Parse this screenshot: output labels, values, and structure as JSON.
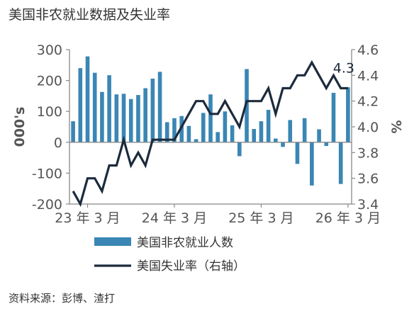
{
  "title": "美国非农就业数据及失业率",
  "source": "资料来源：彭博、渣打",
  "colors": {
    "bar": "#3a86b4",
    "line": "#1c2b3c",
    "axis": "#888888"
  },
  "chart_data": {
    "type": "bar",
    "title": "美国非农就业数据及失业率",
    "legend_placement": "bottom",
    "grid": false,
    "xlabel": "",
    "ylabel": "000's",
    "y2label": "%",
    "ylim": [
      -200,
      300
    ],
    "y2lim": [
      3.4,
      4.6
    ],
    "yticks": [
      -200,
      -100,
      0,
      100,
      200,
      300
    ],
    "y2ticks": [
      "3.4",
      "3.6",
      "3.8",
      "4.0",
      "4.2",
      "4.4",
      "4.6"
    ],
    "x_tick_labels": [
      {
        "index": 2,
        "label": "23 年 3 月"
      },
      {
        "index": 14,
        "label": "24 年 3 月"
      },
      {
        "index": 26,
        "label": "25 年 3 月"
      },
      {
        "index": 38,
        "label": "26 年 3 月"
      }
    ],
    "months": [
      "2023-01",
      "2023-02",
      "2023-03",
      "2023-04",
      "2023-05",
      "2023-06",
      "2023-07",
      "2023-08",
      "2023-09",
      "2023-10",
      "2023-11",
      "2023-12",
      "2024-01",
      "2024-02",
      "2024-03",
      "2024-04",
      "2024-05",
      "2024-06",
      "2024-07",
      "2024-08",
      "2024-09",
      "2024-10",
      "2024-11",
      "2024-12",
      "2025-01",
      "2025-02",
      "2025-03",
      "2025-04",
      "2025-05",
      "2025-06",
      "2025-07",
      "2025-08",
      "2025-09",
      "2025-10",
      "2025-11",
      "2025-12",
      "2026-01",
      "2026-02",
      "2026-03"
    ],
    "series": [
      {
        "name": "美国非农就业人数",
        "type": "bar",
        "axis": "left",
        "values": [
          68,
          240,
          278,
          225,
          163,
          217,
          155,
          157,
          140,
          153,
          175,
          206,
          228,
          65,
          78,
          85,
          53,
          10,
          95,
          155,
          33,
          100,
          55,
          -45,
          237,
          43,
          68,
          105,
          12,
          -15,
          72,
          -70,
          78,
          -140,
          42,
          -12,
          160,
          -135,
          178
        ]
      },
      {
        "name": "美国失业率（右轴）",
        "type": "line",
        "axis": "right",
        "values": [
          3.5,
          3.4,
          3.6,
          3.6,
          3.5,
          3.7,
          3.7,
          3.9,
          3.7,
          3.8,
          3.7,
          3.9,
          3.9,
          3.9,
          3.9,
          4.0,
          4.1,
          4.2,
          4.2,
          4.1,
          4.1,
          4.2,
          4.1,
          4.0,
          4.2,
          4.2,
          4.2,
          4.3,
          4.1,
          4.3,
          4.3,
          4.4,
          4.4,
          4.5,
          4.4,
          4.3,
          4.4,
          4.3,
          4.3
        ]
      }
    ],
    "annotations": [
      {
        "text": "4.3",
        "index": 38,
        "series": 1
      }
    ]
  }
}
